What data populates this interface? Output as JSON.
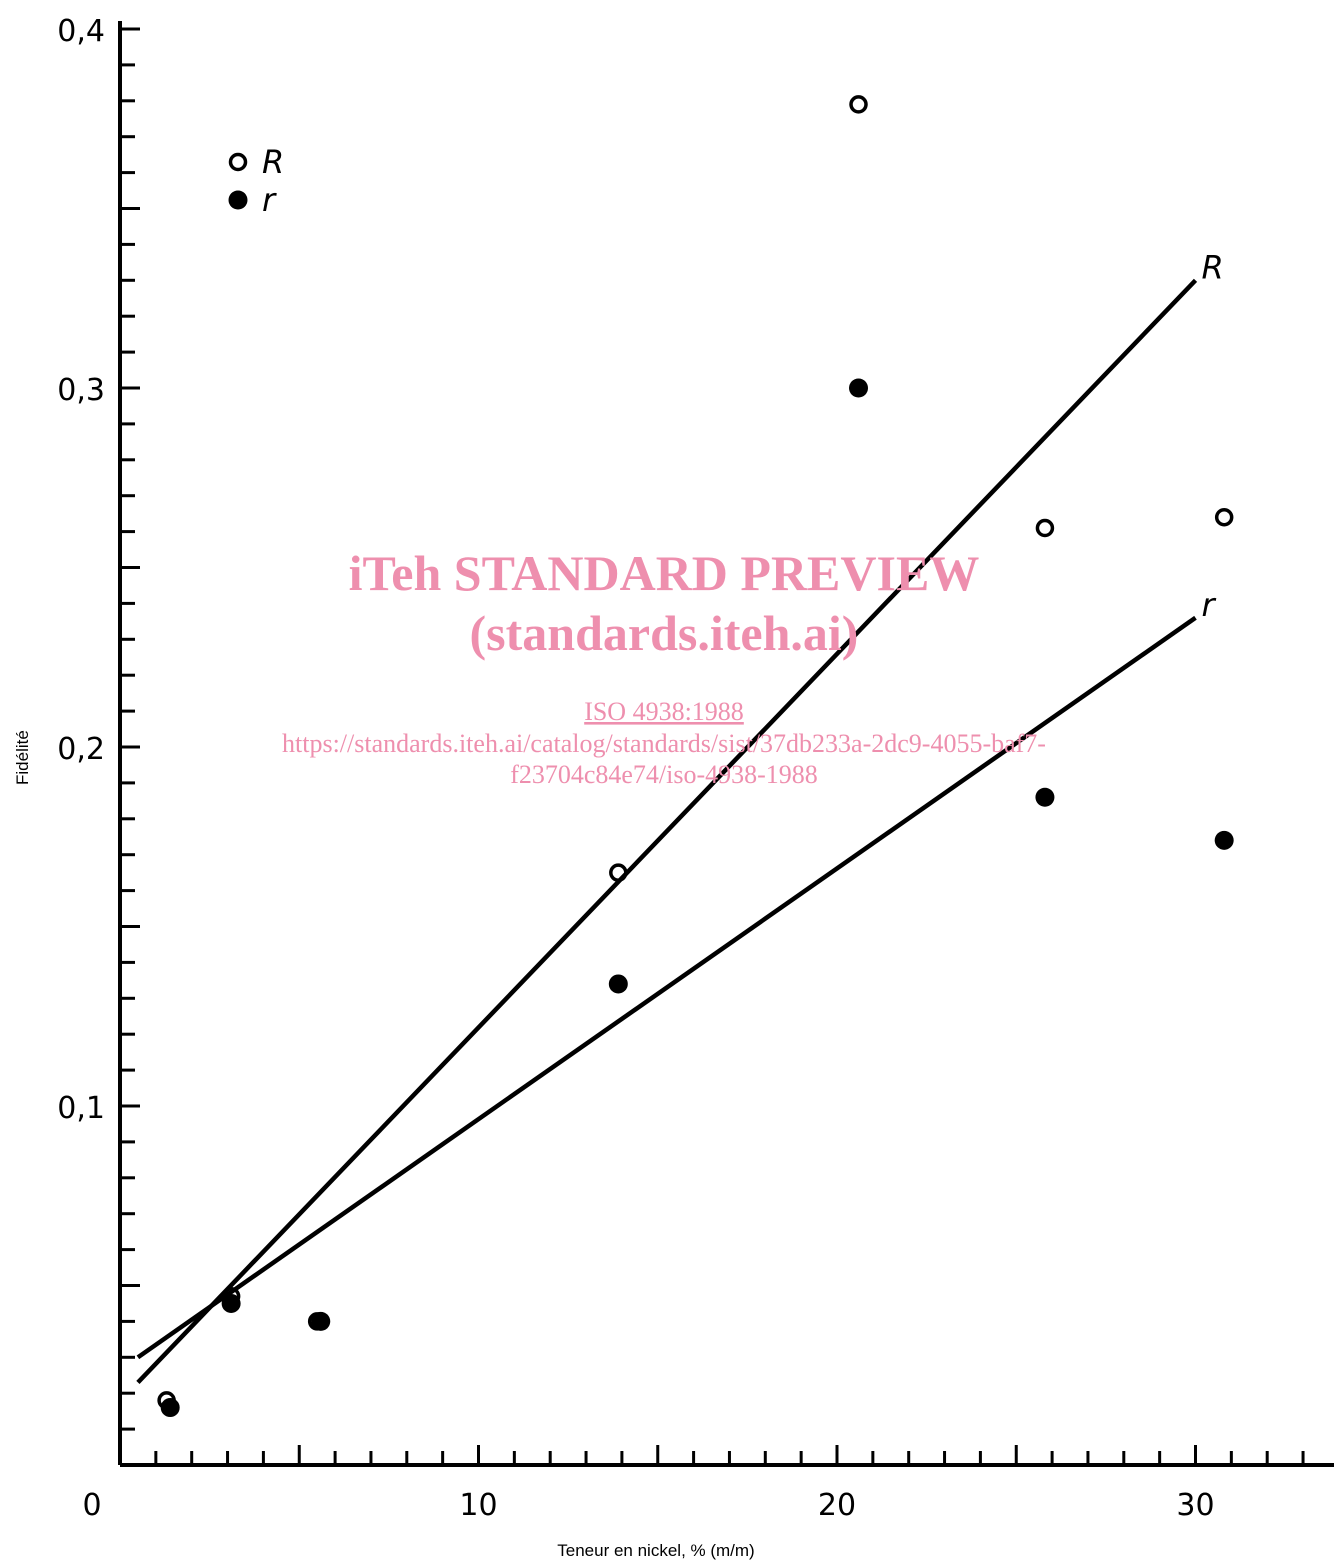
{
  "chart_data": {
    "type": "scatter",
    "xlabel": "Teneur en nickel, % (m/m)",
    "ylabel": "Fidélité",
    "xlim": [
      0,
      34
    ],
    "ylim": [
      0,
      0.4
    ],
    "x_ticks": [
      {
        "value": 0,
        "label": "0"
      },
      {
        "value": 10,
        "label": "10"
      },
      {
        "value": 20,
        "label": "20"
      },
      {
        "value": 30,
        "label": "30"
      }
    ],
    "y_ticks": [
      {
        "value": 0.1,
        "label": "0,1"
      },
      {
        "value": 0.2,
        "label": "0,2"
      },
      {
        "value": 0.3,
        "label": "0,3"
      },
      {
        "value": 0.4,
        "label": "0,4"
      }
    ],
    "series": [
      {
        "name": "R",
        "marker": "open-circle",
        "points": [
          {
            "x": 1.3,
            "y": 0.018
          },
          {
            "x": 3.1,
            "y": 0.047
          },
          {
            "x": 5.5,
            "y": 0.04
          },
          {
            "x": 13.9,
            "y": 0.165
          },
          {
            "x": 20.6,
            "y": 0.379
          },
          {
            "x": 25.8,
            "y": 0.261
          },
          {
            "x": 30.8,
            "y": 0.264
          }
        ],
        "fit_line": {
          "x": [
            0.5,
            30
          ],
          "y": [
            0.023,
            0.33
          ]
        }
      },
      {
        "name": "r",
        "marker": "filled-circle",
        "points": [
          {
            "x": 1.4,
            "y": 0.016
          },
          {
            "x": 3.1,
            "y": 0.045
          },
          {
            "x": 5.6,
            "y": 0.04
          },
          {
            "x": 13.9,
            "y": 0.134
          },
          {
            "x": 20.6,
            "y": 0.3
          },
          {
            "x": 25.8,
            "y": 0.186
          },
          {
            "x": 30.8,
            "y": 0.174
          }
        ],
        "fit_line": {
          "x": [
            0.5,
            30
          ],
          "y": [
            0.03,
            0.236
          ]
        }
      }
    ],
    "legend": {
      "placement": "top-left",
      "items": [
        {
          "label": "R",
          "marker": "open-circle"
        },
        {
          "label": "r",
          "marker": "filled-circle"
        }
      ]
    },
    "line_labels": [
      {
        "series": "R",
        "text": "R"
      },
      {
        "series": "r",
        "text": "r"
      }
    ],
    "grid": false
  },
  "watermark": {
    "line1": "iTeh STANDARD PREVIEW",
    "line2": "(standards.iteh.ai)",
    "line3": "ISO 4938:1988",
    "line4": "https://standards.iteh.ai/catalog/standards/sist/37db233a-2dc9-4055-baf7-",
    "line5": "f23704c84e74/iso-4938-1988"
  },
  "colors": {
    "ink": "#000000",
    "watermark": "#ee8fae"
  }
}
